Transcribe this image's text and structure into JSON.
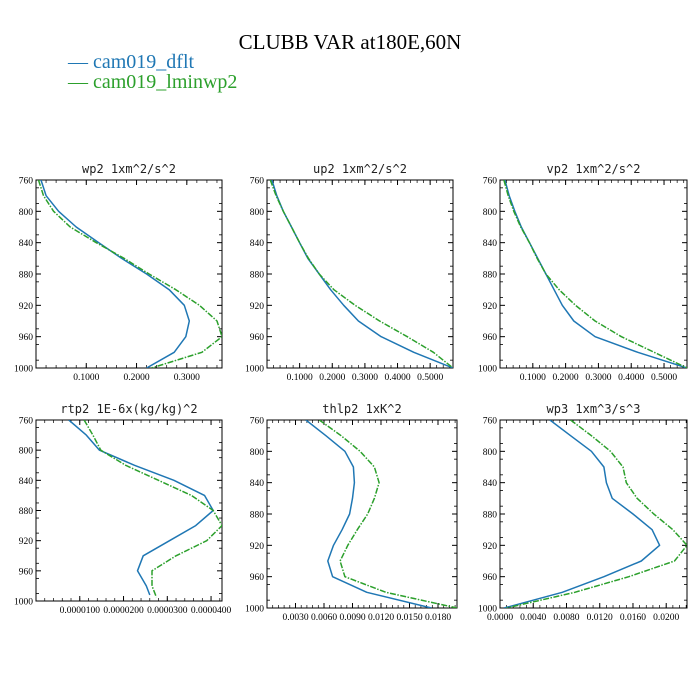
{
  "figure": {
    "title": "CLUBB VAR at180E,60N"
  },
  "legend": [
    {
      "label": "cam019_dflt",
      "color": "#1f77b4"
    },
    {
      "label": "cam019_lminwp2",
      "color": "#2ca02c"
    }
  ],
  "chart_data": [
    {
      "type": "line",
      "title": "wp2   1xm^2/s^2",
      "xlim": [
        0.0,
        0.37
      ],
      "ylim": [
        760,
        1000
      ],
      "y_inverted": true,
      "xticks": [
        0.1,
        0.2,
        0.3
      ],
      "xtick_labels": [
        "0.1000",
        "0.2000",
        "0.3000"
      ],
      "yticks": [
        760,
        800,
        840,
        880,
        920,
        960,
        1000
      ],
      "ytick_labels": [
        "760",
        "800",
        "840",
        "880",
        "920",
        "960",
        "1000"
      ],
      "series": [
        {
          "name": "cam019_dflt",
          "x": [
            0.01,
            0.02,
            0.045,
            0.08,
            0.125,
            0.17,
            0.22,
            0.265,
            0.295,
            0.305,
            0.298,
            0.275,
            0.22
          ],
          "y": [
            760,
            780,
            800,
            820,
            840,
            860,
            880,
            900,
            920,
            940,
            960,
            980,
            1000
          ]
        },
        {
          "name": "cam019_lminwp2",
          "x": [
            0.005,
            0.015,
            0.035,
            0.068,
            0.12,
            0.175,
            0.225,
            0.278,
            0.325,
            0.36,
            0.37,
            0.33,
            0.23
          ],
          "y": [
            760,
            780,
            800,
            820,
            840,
            860,
            880,
            900,
            920,
            940,
            960,
            980,
            1000
          ]
        }
      ]
    },
    {
      "type": "line",
      "title": "up2   1xm^2/s^2",
      "xlim": [
        0.0,
        0.57
      ],
      "ylim": [
        760,
        1000
      ],
      "y_inverted": true,
      "xticks": [
        0.1,
        0.2,
        0.3,
        0.4,
        0.5
      ],
      "xtick_labels": [
        "0.1000",
        "0.2000",
        "0.3000",
        "0.4000",
        "0.5000"
      ],
      "yticks": [
        760,
        800,
        840,
        880,
        920,
        960,
        1000
      ],
      "ytick_labels": [
        "760",
        "800",
        "840",
        "880",
        "920",
        "960",
        "1000"
      ],
      "series": [
        {
          "name": "cam019_dflt",
          "x": [
            0.015,
            0.03,
            0.05,
            0.075,
            0.1,
            0.125,
            0.16,
            0.195,
            0.235,
            0.28,
            0.35,
            0.45,
            0.57
          ],
          "y": [
            760,
            780,
            800,
            820,
            840,
            860,
            880,
            900,
            920,
            940,
            960,
            980,
            1000
          ]
        },
        {
          "name": "cam019_lminwp2",
          "x": [
            0.01,
            0.028,
            0.05,
            0.075,
            0.1,
            0.127,
            0.16,
            0.205,
            0.27,
            0.345,
            0.43,
            0.51,
            0.57
          ],
          "y": [
            760,
            780,
            800,
            820,
            840,
            860,
            880,
            900,
            920,
            940,
            960,
            980,
            1000
          ]
        }
      ]
    },
    {
      "type": "line",
      "title": "vp2   1xm^2/s^2",
      "xlim": [
        0.0,
        0.57
      ],
      "ylim": [
        760,
        1000
      ],
      "y_inverted": true,
      "xticks": [
        0.1,
        0.2,
        0.3,
        0.4,
        0.5
      ],
      "xtick_labels": [
        "0.1000",
        "0.2000",
        "0.3000",
        "0.4000",
        "0.5000"
      ],
      "yticks": [
        760,
        800,
        840,
        880,
        920,
        960,
        1000
      ],
      "ytick_labels": [
        "760",
        "800",
        "840",
        "880",
        "920",
        "960",
        "1000"
      ],
      "series": [
        {
          "name": "cam019_dflt",
          "x": [
            0.015,
            0.028,
            0.045,
            0.065,
            0.09,
            0.115,
            0.14,
            0.165,
            0.19,
            0.225,
            0.29,
            0.42,
            0.57
          ],
          "y": [
            760,
            780,
            800,
            820,
            840,
            860,
            880,
            900,
            920,
            940,
            960,
            980,
            1000
          ]
        },
        {
          "name": "cam019_lminwp2",
          "x": [
            0.012,
            0.025,
            0.042,
            0.063,
            0.09,
            0.113,
            0.14,
            0.18,
            0.23,
            0.29,
            0.37,
            0.47,
            0.57
          ],
          "y": [
            760,
            780,
            800,
            820,
            840,
            860,
            880,
            900,
            920,
            940,
            960,
            980,
            1000
          ]
        }
      ]
    },
    {
      "type": "line",
      "title": "rtp2   1E-6x(kg/kg)^2",
      "xlim": [
        0.0,
        4.25e-05
      ],
      "ylim": [
        760,
        1000
      ],
      "y_inverted": true,
      "xticks": [
        1e-05,
        2e-05,
        3e-05,
        4e-05
      ],
      "xtick_labels": [
        "0.0000100",
        "0.0000200",
        "0.0000300",
        "0.0000400"
      ],
      "yticks": [
        760,
        800,
        840,
        880,
        920,
        960,
        1000
      ],
      "ytick_labels": [
        "760",
        "800",
        "840",
        "880",
        "920",
        "960",
        "1000"
      ],
      "series": [
        {
          "name": "cam019_dflt",
          "x": [
            7.5e-06,
            1.15e-05,
            1.45e-05,
            2.25e-05,
            3.15e-05,
            3.85e-05,
            4.05e-05,
            3.65e-05,
            3.05e-05,
            2.45e-05,
            2.32e-05,
            2.52e-05,
            2.6e-05
          ],
          "y": [
            760,
            780,
            800,
            820,
            840,
            860,
            880,
            900,
            920,
            940,
            960,
            980,
            992
          ]
        },
        {
          "name": "cam019_lminwp2",
          "x": [
            1.1e-05,
            1.3e-05,
            1.48e-05,
            2.05e-05,
            2.8e-05,
            3.55e-05,
            4.05e-05,
            4.25e-05,
            3.9e-05,
            3.2e-05,
            2.65e-05,
            2.65e-05,
            2.75e-05
          ],
          "y": [
            760,
            780,
            800,
            820,
            840,
            860,
            880,
            900,
            920,
            940,
            960,
            980,
            995
          ]
        }
      ]
    },
    {
      "type": "line",
      "title": "thlp2   1xK^2",
      "xlim": [
        0.0,
        0.02
      ],
      "ylim": [
        760,
        1000
      ],
      "y_inverted": true,
      "xticks": [
        0.003,
        0.006,
        0.009,
        0.012,
        0.015,
        0.018
      ],
      "xtick_labels": [
        "0.0030",
        "0.0060",
        "0.0090",
        "0.0120",
        "0.0150",
        "0.0180"
      ],
      "yticks": [
        760,
        800,
        840,
        880,
        920,
        960,
        1000
      ],
      "ytick_labels": [
        "760",
        "800",
        "840",
        "880",
        "920",
        "960",
        "1000"
      ],
      "series": [
        {
          "name": "cam019_dflt",
          "x": [
            0.0041,
            0.0062,
            0.0082,
            0.0091,
            0.0092,
            0.009,
            0.0087,
            0.0079,
            0.007,
            0.0064,
            0.0069,
            0.0105,
            0.0173
          ],
          "y": [
            760,
            780,
            800,
            820,
            840,
            860,
            880,
            900,
            920,
            940,
            960,
            980,
            1000
          ]
        },
        {
          "name": "cam019_lminwp2",
          "x": [
            0.0055,
            0.0078,
            0.0098,
            0.0113,
            0.0118,
            0.0113,
            0.0106,
            0.0095,
            0.0085,
            0.0077,
            0.0082,
            0.0125,
            0.02
          ],
          "y": [
            760,
            780,
            800,
            820,
            840,
            860,
            880,
            900,
            920,
            940,
            960,
            980,
            1000
          ]
        }
      ]
    },
    {
      "type": "line",
      "title": "wp3   1xm^3/s^3",
      "xlim": [
        0.0,
        0.0225
      ],
      "ylim": [
        760,
        1000
      ],
      "y_inverted": true,
      "xticks": [
        0.0,
        0.004,
        0.008,
        0.012,
        0.016,
        0.02
      ],
      "xtick_labels": [
        "0.0000",
        "0.0040",
        "0.0080",
        "0.0120",
        "0.0160",
        "0.0200"
      ],
      "yticks": [
        760,
        800,
        840,
        880,
        920,
        960,
        1000
      ],
      "ytick_labels": [
        "760",
        "800",
        "840",
        "880",
        "920",
        "960",
        "1000"
      ],
      "series": [
        {
          "name": "cam019_dflt",
          "x": [
            0.006,
            0.0085,
            0.011,
            0.0125,
            0.0128,
            0.0135,
            0.016,
            0.0183,
            0.0192,
            0.017,
            0.0125,
            0.0075,
            0.0005
          ],
          "y": [
            760,
            780,
            800,
            820,
            840,
            860,
            880,
            900,
            920,
            940,
            960,
            980,
            1000
          ]
        },
        {
          "name": "cam019_lminwp2",
          "x": [
            0.0085,
            0.011,
            0.0133,
            0.0148,
            0.0152,
            0.0165,
            0.0185,
            0.0208,
            0.0225,
            0.021,
            0.0155,
            0.009,
            0.0008
          ],
          "y": [
            760,
            780,
            800,
            820,
            840,
            860,
            880,
            900,
            920,
            940,
            960,
            980,
            1000
          ]
        }
      ]
    }
  ]
}
